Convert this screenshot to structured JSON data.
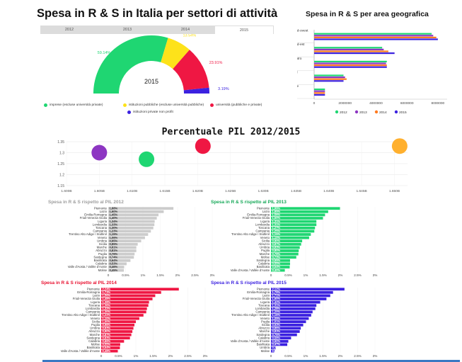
{
  "header": {
    "title": "Spesa in R & S in Italia per settori di attività",
    "geo_title": "Spesa in R & S per area geografica",
    "pil_title": "Percentuale PIL 2012/2015"
  },
  "tabs": [
    {
      "label": "2012"
    },
    {
      "label": "2013"
    },
    {
      "label": "2014"
    },
    {
      "label": "2015",
      "active": true
    }
  ],
  "colors": {
    "green": "#1fd672",
    "yellow": "#fde21a",
    "red": "#ef1743",
    "blue": "#3b21e0",
    "purple": "#8d36c2",
    "orange": "#ff7a1f",
    "gray": "#cccccc"
  },
  "chart_data": [
    {
      "type": "pie",
      "center_label": "2015",
      "categories": [
        "imprese (escluse università private)",
        "istituzioni pubbliche (escluse università pubbliche)",
        "università (pubbliche e private)",
        "istituzioni private non profit"
      ],
      "values": [
        59.14,
        13.54,
        23.91,
        3.19
      ],
      "value_labels": [
        "59.14%",
        "13.54%",
        "23.91%",
        "3.19%"
      ],
      "legend_labels": [
        "imprese (escluse università private)",
        "istituzioni pubbliche (escluse università pubbliche)",
        "università (pubbliche e private)",
        "istituzioni private non profit"
      ],
      "colors": [
        "#1fd672",
        "#fde21a",
        "#ef1743",
        "#3b21e0"
      ]
    },
    {
      "type": "bar",
      "orientation": "horizontal",
      "categories": [
        "Nord-ovest",
        "Nord-est",
        "Centro",
        "Sud",
        "Isole"
      ],
      "series": [
        {
          "name": "2012",
          "color": "#1fd672",
          "values": [
            7600000,
            4400000,
            4700000,
            1900000,
            700000
          ]
        },
        {
          "name": "2013",
          "color": "#8d36c2",
          "values": [
            7700000,
            4500000,
            4650000,
            2000000,
            700000
          ]
        },
        {
          "name": "2014",
          "color": "#ff7a1f",
          "values": [
            7900000,
            4800000,
            4700000,
            2100000,
            700000
          ]
        },
        {
          "name": "2015",
          "color": "#3b21e0",
          "values": [
            8000000,
            5200000,
            4700000,
            1900000,
            700000
          ]
        }
      ],
      "xticks": [
        "0",
        "2000000",
        "4000000",
        "6000000",
        "8000000"
      ],
      "xlim": [
        0,
        8600000
      ]
    },
    {
      "type": "scatter",
      "title": "Percentuale PIL 2012/2015",
      "xlim": [
        1.6,
        1.652
      ],
      "ylim": [
        1.15,
        1.35
      ],
      "xticks": [
        "1.600B",
        "1.605B",
        "1.610B",
        "1.615B",
        "1.620B",
        "1.625B",
        "1.630B",
        "1.635B",
        "1.640B",
        "1.645B",
        "1.650B"
      ],
      "yticks": [
        "1.15",
        "1.2",
        "1.25",
        "1.3",
        "1.35"
      ],
      "points": [
        {
          "name": "2012",
          "x": 1.605,
          "y": 1.3,
          "color": "#8d36c2"
        },
        {
          "name": "2013",
          "x": 1.6122,
          "y": 1.27,
          "color": "#1fd672"
        },
        {
          "name": "2014",
          "x": 1.6208,
          "y": 1.33,
          "color": "#ef1743"
        },
        {
          "name": "2015",
          "x": 1.6508,
          "y": 1.33,
          "color": "#ffb02e"
        }
      ]
    },
    {
      "type": "bar",
      "orientation": "horizontal",
      "title": "Spesa in R & S rispetto al PIL 2012",
      "color": "#cccccc",
      "categories": [
        "Piemonte",
        "Lazio",
        "Emilia-Romagna",
        "Friuli-Venezia Giulia",
        "Liguria",
        "Lombardia",
        "Toscana",
        "Campania",
        "Trentino Alto Adige / Südtirol",
        "Veneto",
        "Umbria",
        "Sicilia",
        "Marche",
        "Abruzzo",
        "Puglia",
        "Sardegna",
        "Basilicata",
        "Calabria",
        "Valle d'Aosta / Vallée d'Aoste",
        "Molise"
      ],
      "values": [
        1.88,
        1.6,
        1.45,
        1.4,
        1.34,
        1.33,
        1.3,
        1.23,
        1.15,
        1.06,
        0.95,
        0.85,
        0.81,
        0.81,
        0.76,
        0.74,
        0.64,
        0.53,
        0.46,
        0.45
      ],
      "value_labels": [
        "1,88%",
        "1,60%",
        "1,45%",
        "1,40%",
        "1,34%",
        "1,33%",
        "1,30%",
        "1,23%",
        "1,15%",
        "1,06%",
        "0,95%",
        "0,85%",
        "0,81%",
        "0,81%",
        "0,76%",
        "0,74%",
        "0,64%",
        "0,53%",
        "0,46%",
        "0,45%"
      ],
      "xticks": [
        "0",
        "0.5%",
        "1%",
        "1.5%",
        "2%",
        "2.5%",
        "3%"
      ],
      "xlim": [
        0,
        3
      ]
    },
    {
      "type": "bar",
      "orientation": "horizontal",
      "title": "Spesa in R & S rispetto al PIL 2013",
      "color": "#1fd672",
      "categories": [
        "Piemonte",
        "Lazio",
        "Emilia-Romagna",
        "Friuli-Venezia Giulia",
        "Liguria",
        "Lombardia",
        "Toscana",
        "Campania",
        "Trentino Alto Adige / Südtirol",
        "Veneto",
        "Sicilia",
        "Abruzzo",
        "Umbria",
        "Puglia",
        "Marche",
        "Molise",
        "Sardegna",
        "Calabria",
        "Basilicata",
        "Valle d'Aosta / Vallée d'Aoste"
      ],
      "values": [
        1.99,
        1.65,
        1.56,
        1.5,
        1.31,
        1.31,
        1.27,
        1.25,
        1.15,
        1.1,
        0.9,
        0.87,
        0.83,
        0.8,
        0.79,
        0.73,
        0.55,
        0.55,
        0.54,
        0.4
      ],
      "value_labels": [
        "1,99%",
        "1,65%",
        "1,56%",
        "1,50%",
        "1,31%",
        "1,31%",
        "1,27%",
        "1,25%",
        "1,15%",
        "1,10%",
        "0,90%",
        "0,87%",
        "0,83%",
        "0,80%",
        "0,79%",
        "0,73%",
        "0,55%",
        "0,55%",
        "0,54%",
        "0,40%"
      ],
      "xticks": [
        "0",
        "0.5%",
        "1%",
        "1.5%",
        "2%",
        "2.5%",
        "3%"
      ],
      "xlim": [
        0,
        3
      ]
    },
    {
      "type": "bar",
      "orientation": "horizontal",
      "title": "Spesa in R & S rispetto al PIL 2014",
      "color": "#ef1743",
      "categories": [
        "Piemonte",
        "Emilia-Romagna",
        "Lazio",
        "Friuli-Venezia Giulia",
        "Liguria",
        "Toscana",
        "Lombardia",
        "Campania",
        "Trentino Alto Adige / Südtirol",
        "Veneto",
        "Sicilia",
        "Puglia",
        "Umbria",
        "Abruzzo",
        "Marche",
        "Sardegna",
        "Calabria",
        "Molise",
        "Basilicata",
        "Valle d'Aosta / Vallée d'Aoste"
      ],
      "values": [
        2.24,
        1.73,
        1.56,
        1.48,
        1.38,
        1.36,
        1.32,
        1.3,
        1.22,
        1.1,
        1.0,
        0.96,
        0.93,
        0.9,
        0.87,
        0.83,
        0.66,
        0.55,
        0.54,
        0.48
      ],
      "value_labels": [
        "2,24%",
        "1,73%",
        "1,56%",
        "1,48%",
        "1,38%",
        "1,36%",
        "1,32%",
        "1,30%",
        "1,22%",
        "1,10%",
        "1,00%",
        "0,96%",
        "0,93%",
        "0,90%",
        "0,87%",
        "0,83%",
        "0,66%",
        "0,55%",
        "0,54%",
        "0,48%"
      ],
      "xticks": [
        "0",
        "0.5%",
        "1%",
        "1.5%",
        "2%",
        "2.5%",
        "3%"
      ],
      "xlim": [
        0,
        3
      ]
    },
    {
      "type": "bar",
      "orientation": "horizontal",
      "title": "Spesa in R & S rispetto al PIL 2015",
      "color": "#3b21e0",
      "categories": [
        "Piemonte",
        "Emilia-Romagna",
        "Lazio",
        "Friuli-Venezia Giulia",
        "Liguria",
        "Toscana",
        "Lombardia",
        "Campania",
        "Trentino Alto Adige / Südtirol",
        "Veneto",
        "Puglia",
        "Sicilia",
        "Abruzzo",
        "Marche",
        "Sardegna",
        "Calabria",
        "Valle d'Aosta / Vallée d'Aoste",
        "Basilicata",
        "Umbria",
        "Molise"
      ],
      "values": [
        2.12,
        1.79,
        1.71,
        1.6,
        1.42,
        1.31,
        1.28,
        1.2,
        1.16,
        1.09,
        1.01,
        0.93,
        0.86,
        0.83,
        0.75,
        0.58,
        0.5,
        0.47,
        0.14,
        0.1
      ],
      "value_labels": [
        "2,12%",
        "1,79%",
        "1,71%",
        "1,60%",
        "1,42%",
        "1,31%",
        "1,28%",
        "1,20%",
        "1,16%",
        "1,09%",
        "1,01%",
        "0,93%",
        "0,86%",
        "0,83%",
        "0,75%",
        "0,58%",
        "0,50%",
        "0,47%",
        "0,14%",
        "0,10%"
      ],
      "xticks": [
        "0",
        "0.5%",
        "1%",
        "1.5%",
        "2%",
        "2.5%",
        "3%"
      ],
      "xlim": [
        0,
        3
      ]
    }
  ]
}
